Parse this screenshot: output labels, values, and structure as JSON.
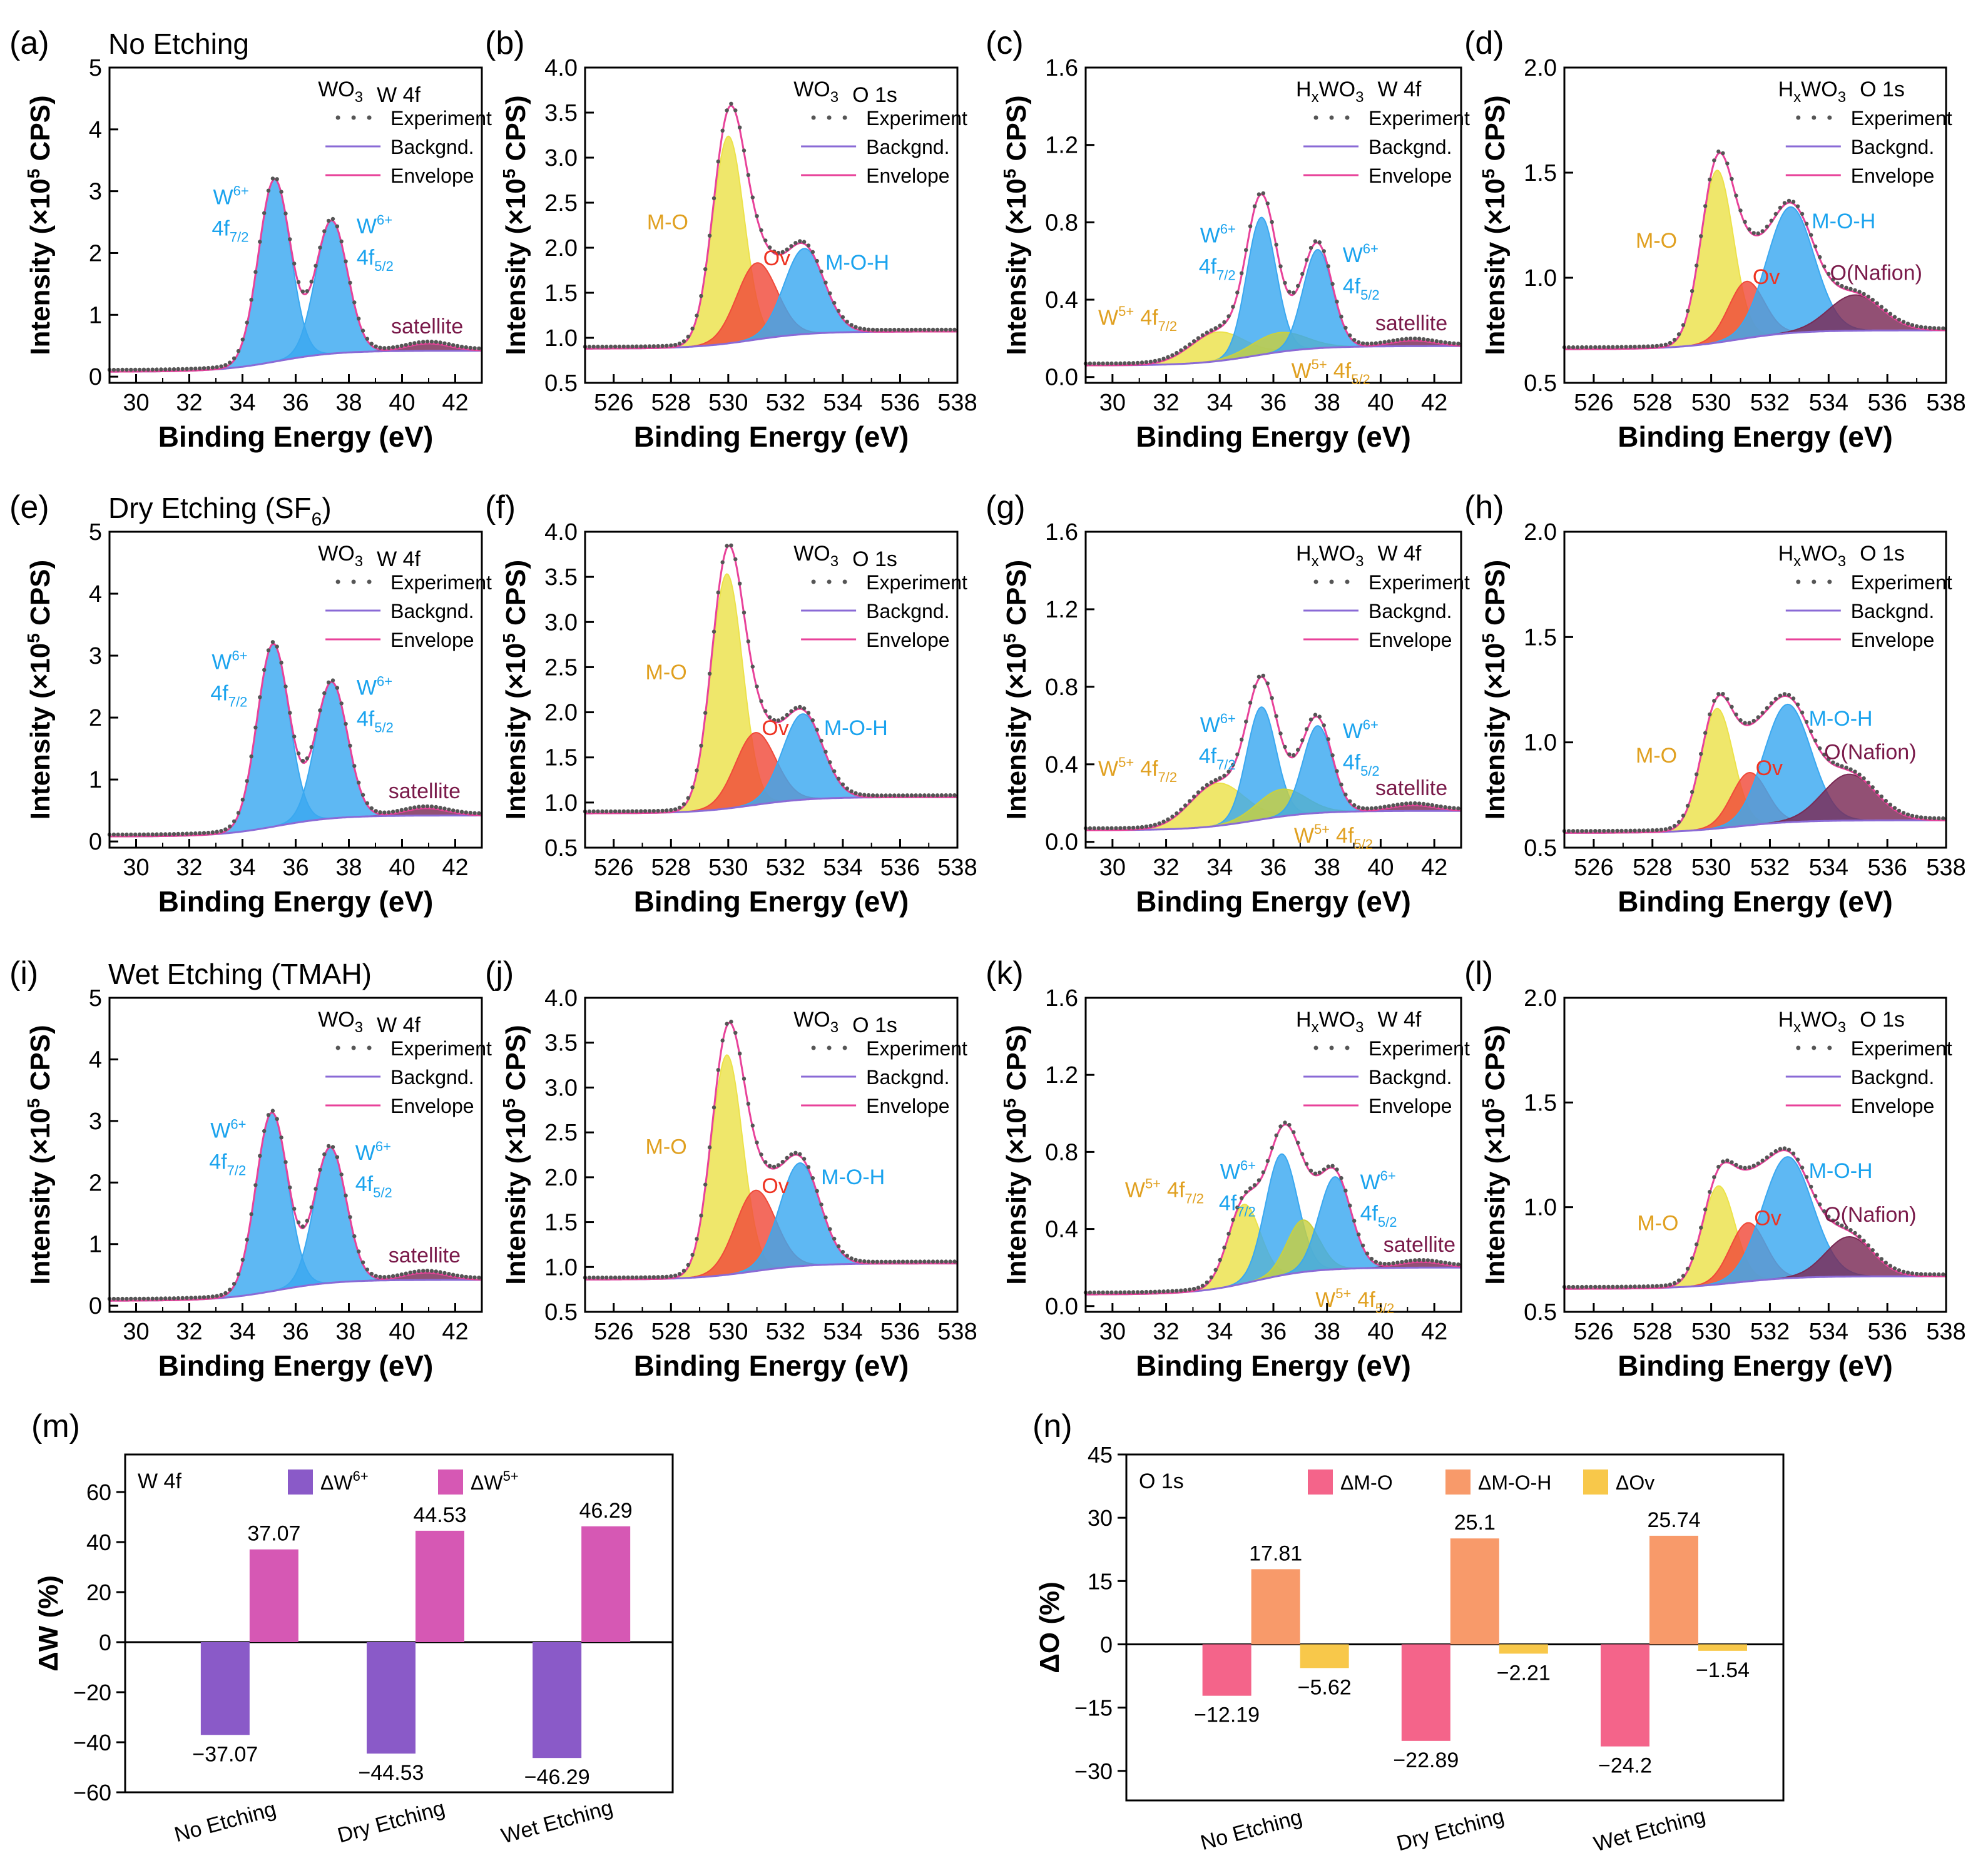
{
  "colors": {
    "blue": "#22a0f0",
    "blueFill": "#3aa8f0",
    "yellow": "#ece24a",
    "red": "#f04a3a",
    "plum": "#7a2a55",
    "olive": "#c8d040",
    "exp": "#555555",
    "bg": "#8a6ad6",
    "env": "#e8429a",
    "lblBlue": "#1aa3ee",
    "lblOrange": "#e0a020",
    "lblRed": "#ee3322",
    "lblPlum": "#7a1a4a",
    "w6": "#8a5ac8",
    "w5": "#d658b4",
    "mo": "#f4648a",
    "moh": "#f89a6a",
    "ov": "#f8c84a"
  },
  "icons": {
    "experiment": "dot-marker-icon",
    "background": "line-swatch-icon",
    "envelope": "line-swatch-icon"
  },
  "legend_entries": [
    "Experiment",
    "Backgnd.",
    "Envelope"
  ],
  "rows": [
    {
      "title": "No Etching"
    },
    {
      "title": "Dry Etching (SF",
      "title_sub": "6",
      "title_end": ")"
    },
    {
      "title": "Wet Etching (TMAH)"
    }
  ],
  "axis": {
    "xlabel": "Binding Energy (eV)",
    "ylabel_pre": "Intensity (×10",
    "ylabel_sup": "5",
    "ylabel_post": " CPS)"
  },
  "panel_types": {
    "wo3w": {
      "formula": "WO",
      "formula_sub": "3",
      "formula_end": "",
      "region": "W 4f",
      "xlim": [
        29,
        43
      ],
      "xticks": [
        "30",
        "32",
        "34",
        "36",
        "38",
        "40",
        "42"
      ],
      "ylim": [
        -0.1,
        5
      ],
      "yticks": [
        "0",
        "1",
        "2",
        "3",
        "4",
        "5"
      ]
    },
    "wo3o": {
      "formula": "WO",
      "formula_sub": "3",
      "formula_end": "",
      "region": "O 1s",
      "xlim": [
        525,
        538
      ],
      "xticks": [
        "526",
        "528",
        "530",
        "532",
        "534",
        "536",
        "538"
      ],
      "ylim": [
        0.5,
        4.0
      ],
      "yticks": [
        "0.5",
        "1.0",
        "1.5",
        "2.0",
        "2.5",
        "3.0",
        "3.5",
        "4.0"
      ]
    },
    "hxw": {
      "formula": "H",
      "formula_sub": "x",
      "formula_end": "WO",
      "formula_sub2": "3",
      "region": "W 4f",
      "xlim": [
        29,
        43
      ],
      "xticks": [
        "30",
        "32",
        "34",
        "36",
        "38",
        "40",
        "42"
      ],
      "ylim": [
        -0.03,
        1.6
      ],
      "yticks": [
        "0.0",
        "0.4",
        "0.8",
        "1.2",
        "1.6"
      ]
    },
    "hxo": {
      "formula": "H",
      "formula_sub": "x",
      "formula_end": "WO",
      "formula_sub2": "3",
      "region": "O 1s",
      "xlim": [
        525,
        538
      ],
      "xticks": [
        "526",
        "528",
        "530",
        "532",
        "534",
        "536",
        "538"
      ],
      "ylim": [
        0.5,
        2.0
      ],
      "yticks": [
        "0.5",
        "1.0",
        "1.5",
        "2.0"
      ]
    }
  },
  "peak_labels": {
    "w6": "W",
    "w6_sup": "6+",
    "f72": "4f",
    "f72_sub": "7/2",
    "f52": "4f",
    "f52_sub": "5/2",
    "w5": "W",
    "w5_sup": "5+",
    "satellite": "satellite",
    "mo": "M-O",
    "ov": "Ov",
    "moh": "M-O-H",
    "nafion": "O(Nafion)"
  },
  "chart_data": [
    {
      "panel": "(a)",
      "type": "line",
      "kind": "wo3w",
      "base": [
        0.08,
        0.42
      ],
      "peaks": [
        {
          "c": 35.2,
          "a": 2.95,
          "w": 0.6,
          "col": "blue"
        },
        {
          "c": 37.35,
          "a": 2.15,
          "w": 0.6,
          "col": "blue"
        },
        {
          "c": 41.0,
          "a": 0.12,
          "w": 0.8,
          "col": "plum"
        }
      ]
    },
    {
      "panel": "(b)",
      "type": "line",
      "kind": "wo3o",
      "base": [
        0.88,
        1.07
      ],
      "peaks": [
        {
          "c": 530.0,
          "a": 2.3,
          "w": 0.55,
          "col": "yellow"
        },
        {
          "c": 531.0,
          "a": 0.85,
          "w": 0.7,
          "col": "red"
        },
        {
          "c": 532.65,
          "a": 0.95,
          "w": 0.7,
          "col": "blue"
        }
      ]
    },
    {
      "panel": "(c)",
      "type": "line",
      "kind": "hxw",
      "base": [
        0.06,
        0.16
      ],
      "peaks": [
        {
          "c": 33.9,
          "a": 0.15,
          "w": 1.0,
          "col": "yellow"
        },
        {
          "c": 35.55,
          "a": 0.71,
          "w": 0.55,
          "col": "blue"
        },
        {
          "c": 36.2,
          "a": 0.1,
          "w": 1.0,
          "col": "olive"
        },
        {
          "c": 37.65,
          "a": 0.51,
          "w": 0.55,
          "col": "blue"
        },
        {
          "c": 41.2,
          "a": 0.03,
          "w": 0.8,
          "col": "plum"
        }
      ]
    },
    {
      "panel": "(d)",
      "type": "line",
      "kind": "hxo",
      "base": [
        0.66,
        0.75
      ],
      "peaks": [
        {
          "c": 530.2,
          "a": 0.82,
          "w": 0.55,
          "col": "yellow"
        },
        {
          "c": 531.2,
          "a": 0.27,
          "w": 0.6,
          "col": "red"
        },
        {
          "c": 532.7,
          "a": 0.6,
          "w": 0.8,
          "col": "blue"
        },
        {
          "c": 534.9,
          "a": 0.17,
          "w": 0.9,
          "col": "plum"
        }
      ]
    },
    {
      "panel": "(e)",
      "type": "line",
      "kind": "wo3w",
      "base": [
        0.08,
        0.42
      ],
      "peaks": [
        {
          "c": 35.15,
          "a": 2.95,
          "w": 0.6,
          "col": "blue"
        },
        {
          "c": 37.35,
          "a": 2.2,
          "w": 0.6,
          "col": "blue"
        },
        {
          "c": 40.9,
          "a": 0.12,
          "w": 0.8,
          "col": "plum"
        }
      ]
    },
    {
      "panel": "(f)",
      "type": "line",
      "kind": "wo3o",
      "base": [
        0.88,
        1.06
      ],
      "peaks": [
        {
          "c": 529.95,
          "a": 2.6,
          "w": 0.55,
          "col": "yellow"
        },
        {
          "c": 530.95,
          "a": 0.8,
          "w": 0.7,
          "col": "red"
        },
        {
          "c": 532.6,
          "a": 0.95,
          "w": 0.7,
          "col": "blue"
        }
      ]
    },
    {
      "panel": "(g)",
      "type": "line",
      "kind": "hxw",
      "base": [
        0.06,
        0.16
      ],
      "peaks": [
        {
          "c": 33.9,
          "a": 0.22,
          "w": 1.0,
          "col": "yellow"
        },
        {
          "c": 35.55,
          "a": 0.58,
          "w": 0.55,
          "col": "blue"
        },
        {
          "c": 36.3,
          "a": 0.14,
          "w": 0.9,
          "col": "olive"
        },
        {
          "c": 37.65,
          "a": 0.45,
          "w": 0.55,
          "col": "blue"
        },
        {
          "c": 41.2,
          "a": 0.03,
          "w": 0.8,
          "col": "plum"
        }
      ]
    },
    {
      "panel": "(h)",
      "type": "line",
      "kind": "hxo",
      "base": [
        0.57,
        0.63
      ],
      "peaks": [
        {
          "c": 530.2,
          "a": 0.57,
          "w": 0.55,
          "col": "yellow"
        },
        {
          "c": 531.3,
          "a": 0.25,
          "w": 0.6,
          "col": "red"
        },
        {
          "c": 532.6,
          "a": 0.56,
          "w": 0.8,
          "col": "blue"
        },
        {
          "c": 534.7,
          "a": 0.22,
          "w": 0.9,
          "col": "plum"
        }
      ]
    },
    {
      "panel": "(i)",
      "type": "line",
      "kind": "wo3w",
      "base": [
        0.08,
        0.42
      ],
      "peaks": [
        {
          "c": 35.1,
          "a": 2.9,
          "w": 0.6,
          "col": "blue"
        },
        {
          "c": 37.3,
          "a": 2.2,
          "w": 0.6,
          "col": "blue"
        },
        {
          "c": 40.9,
          "a": 0.12,
          "w": 0.8,
          "col": "plum"
        }
      ]
    },
    {
      "panel": "(j)",
      "type": "line",
      "kind": "wo3o",
      "base": [
        0.86,
        1.04
      ],
      "peaks": [
        {
          "c": 529.95,
          "a": 2.45,
          "w": 0.55,
          "col": "yellow"
        },
        {
          "c": 530.95,
          "a": 0.9,
          "w": 0.7,
          "col": "red"
        },
        {
          "c": 532.5,
          "a": 1.15,
          "w": 0.7,
          "col": "blue"
        }
      ]
    },
    {
      "panel": "(k)",
      "type": "line",
      "kind": "hxw",
      "base": [
        0.06,
        0.2
      ],
      "peaks": [
        {
          "c": 34.9,
          "a": 0.41,
          "w": 0.6,
          "col": "yellow"
        },
        {
          "c": 36.3,
          "a": 0.63,
          "w": 0.6,
          "col": "blue"
        },
        {
          "c": 37.1,
          "a": 0.27,
          "w": 0.6,
          "col": "olive"
        },
        {
          "c": 38.3,
          "a": 0.48,
          "w": 0.6,
          "col": "blue"
        },
        {
          "c": 41.5,
          "a": 0.03,
          "w": 0.8,
          "col": "plum"
        }
      ]
    },
    {
      "panel": "(l)",
      "type": "line",
      "kind": "hxo",
      "base": [
        0.61,
        0.67
      ],
      "peaks": [
        {
          "c": 530.25,
          "a": 0.47,
          "w": 0.55,
          "col": "yellow"
        },
        {
          "c": 531.25,
          "a": 0.28,
          "w": 0.6,
          "col": "red"
        },
        {
          "c": 532.6,
          "a": 0.58,
          "w": 0.85,
          "col": "blue"
        },
        {
          "c": 534.7,
          "a": 0.19,
          "w": 0.8,
          "col": "plum"
        }
      ]
    },
    {
      "panel": "(m)",
      "type": "bar",
      "title": "W 4f",
      "ylabel_pre": "ΔW",
      "ylabel_post": " (%)",
      "categories": [
        "No Etching",
        "Dry Etching",
        "Wet Etching"
      ],
      "ylim": [
        -60,
        75
      ],
      "yticks": [
        "-60",
        "-40",
        "-20",
        "0",
        "20",
        "40",
        "60"
      ],
      "series": [
        {
          "name": "ΔW",
          "name_sup": "6+",
          "color": "w6",
          "values": [
            -37.07,
            -44.53,
            -46.29
          ],
          "labels": [
            "−37.07",
            "−44.53",
            "−46.29"
          ]
        },
        {
          "name": "ΔW",
          "name_sup": "5+",
          "color": "w5",
          "values": [
            37.07,
            44.53,
            46.29
          ],
          "labels": [
            "37.07",
            "44.53",
            "46.29"
          ]
        }
      ]
    },
    {
      "panel": "(n)",
      "type": "bar",
      "title": "O 1s",
      "ylabel_pre": "ΔO",
      "ylabel_post": " (%)",
      "categories": [
        "No Etching",
        "Dry Etching",
        "Wet Etching"
      ],
      "ylim": [
        -37,
        45
      ],
      "yticks": [
        "-30",
        "-15",
        "0",
        "15",
        "30",
        "45"
      ],
      "series": [
        {
          "name": "ΔM-O",
          "color": "mo",
          "values": [
            -12.19,
            -22.89,
            -24.2
          ],
          "labels": [
            "−12.19",
            "−22.89",
            "−24.2"
          ]
        },
        {
          "name": "ΔM-O-H",
          "color": "moh",
          "values": [
            17.81,
            25.1,
            25.74
          ],
          "labels": [
            "17.81",
            "25.1",
            "25.74"
          ]
        },
        {
          "name": "ΔOv",
          "color": "ov",
          "values": [
            -5.62,
            -2.21,
            -1.54
          ],
          "labels": [
            "−5.62",
            "−2.21",
            "−1.54"
          ]
        }
      ]
    }
  ]
}
